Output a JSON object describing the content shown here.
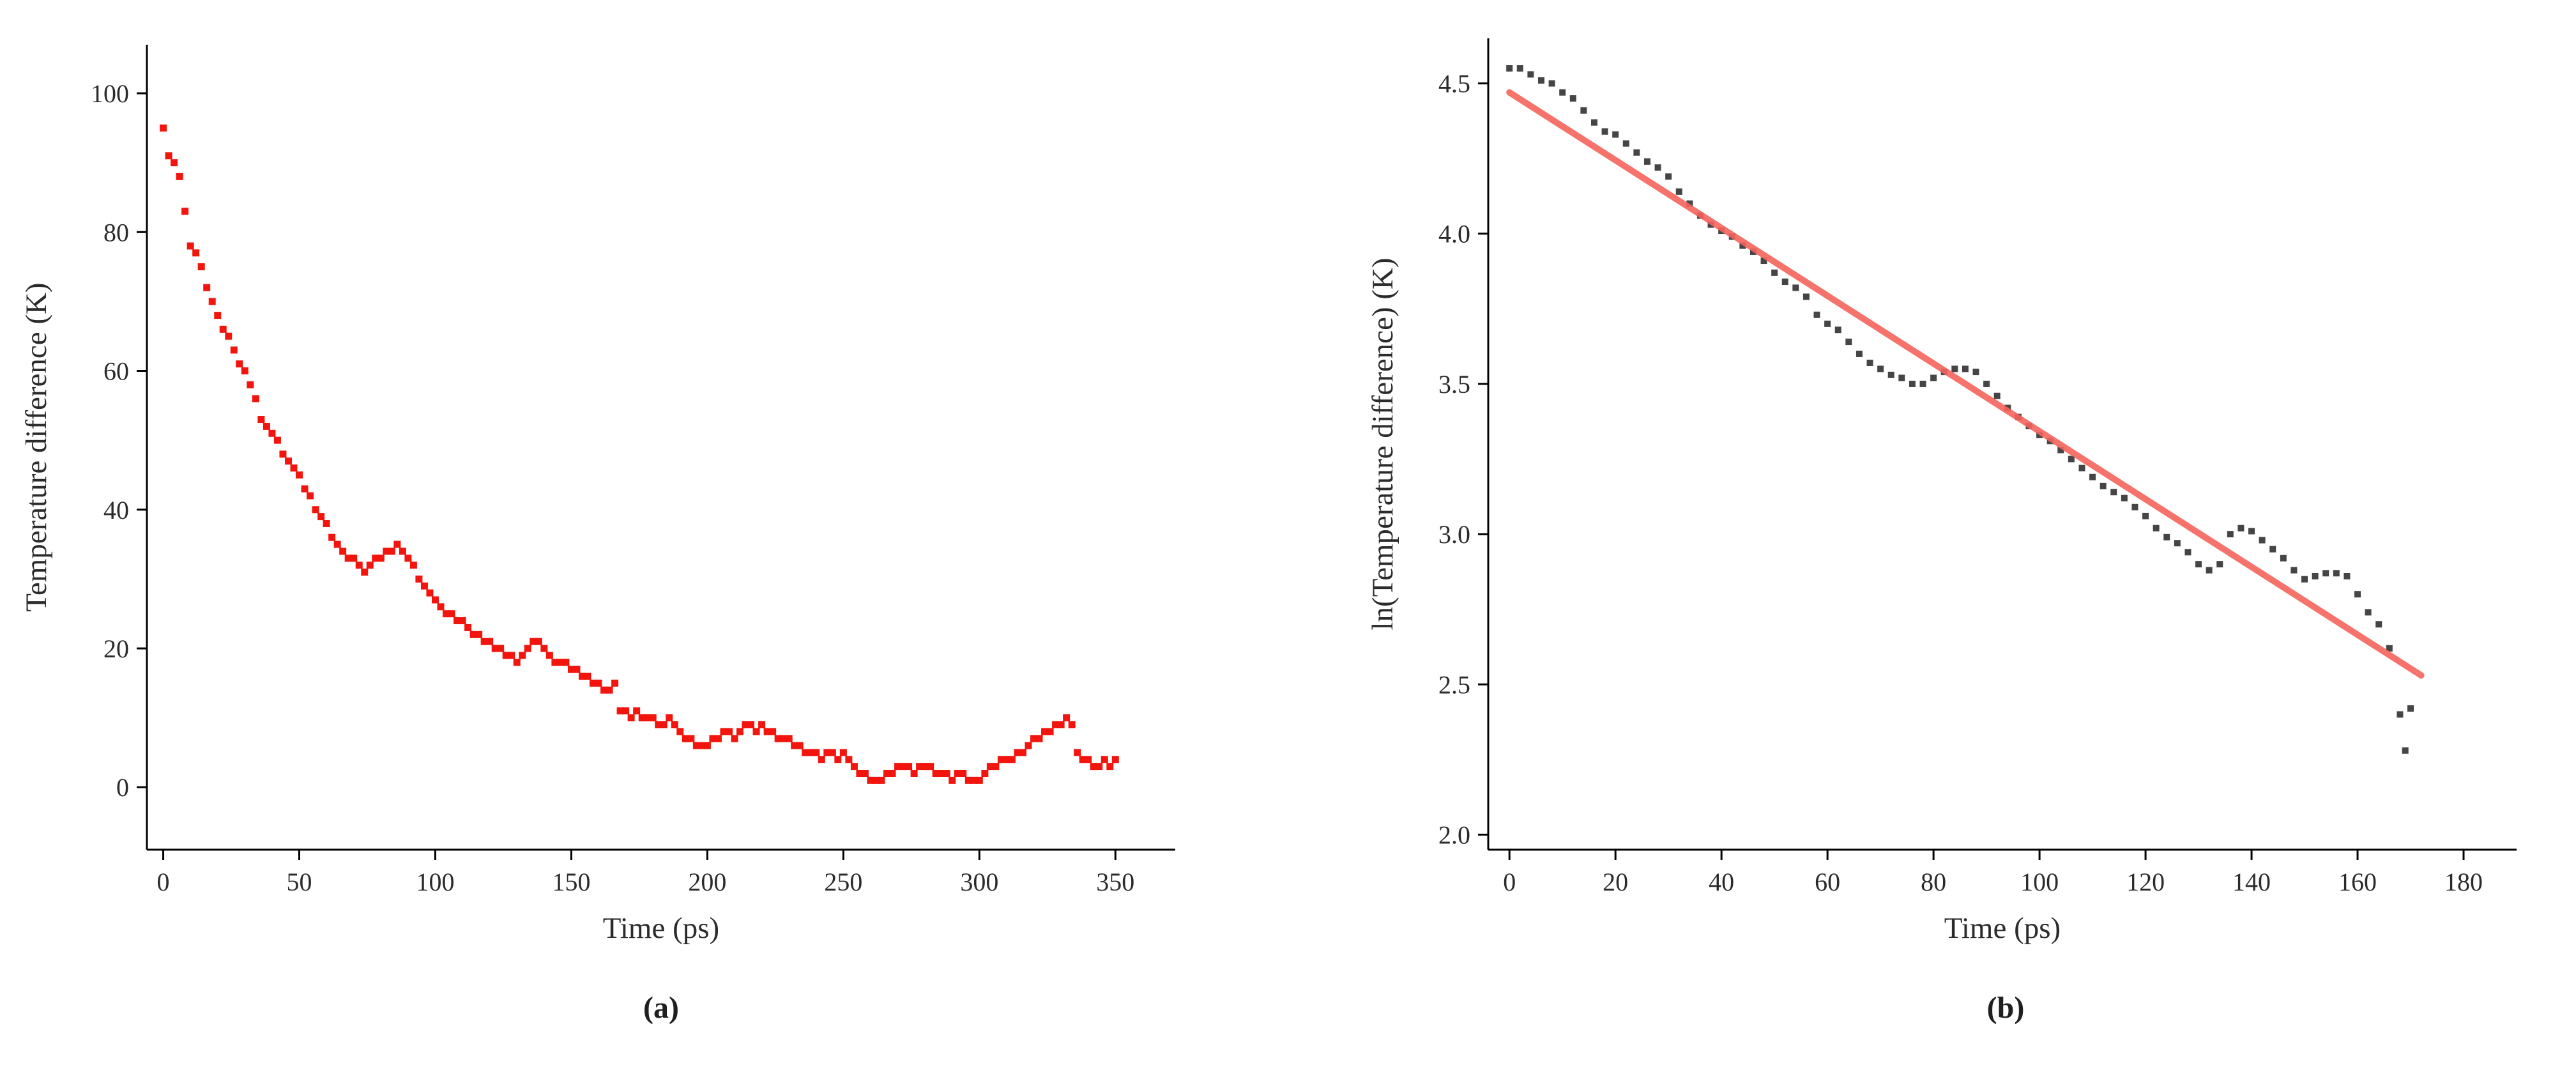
{
  "figure": {
    "caption_a": "(a)",
    "caption_b": "(b)"
  },
  "colors": {
    "panel_a_marker": "#f2150d",
    "panel_b_marker": "#454545",
    "fit_line": "#f4645c",
    "axis": "#000000",
    "text": "#2b2b2b"
  },
  "chart_data": [
    {
      "id": "panel-a",
      "type": "scatter",
      "title": "",
      "xlabel": "Time (ps)",
      "ylabel": "Temperature difference (K)",
      "xlim": [
        -6,
        372
      ],
      "ylim": [
        -9,
        107
      ],
      "xticks": [
        0,
        50,
        100,
        150,
        200,
        250,
        300,
        350
      ],
      "xtick_labels": [
        "0",
        "50",
        "100",
        "150",
        "200",
        "250",
        "300",
        "350"
      ],
      "yticks": [
        0,
        20,
        40,
        60,
        80,
        100
      ],
      "ytick_labels": [
        "0",
        "20",
        "40",
        "60",
        "80",
        "100"
      ],
      "grid": false,
      "legend": null,
      "marker": "square",
      "marker_size": 11,
      "marker_color": "#f2150d",
      "axis_color": "#000000",
      "text_color": "#2b2b2b",
      "ylabel_offset": 158,
      "series": [
        {
          "name": "Temperature difference",
          "x": [
            0,
            2,
            4,
            6,
            8,
            10,
            12,
            14,
            16,
            18,
            20,
            22,
            24,
            26,
            28,
            30,
            32,
            34,
            36,
            38,
            40,
            42,
            44,
            46,
            48,
            50,
            52,
            54,
            56,
            58,
            60,
            62,
            64,
            66,
            68,
            70,
            72,
            74,
            76,
            78,
            80,
            82,
            84,
            86,
            88,
            90,
            92,
            94,
            96,
            98,
            100,
            102,
            104,
            106,
            108,
            110,
            112,
            114,
            116,
            118,
            120,
            122,
            124,
            126,
            128,
            130,
            132,
            134,
            136,
            138,
            140,
            142,
            144,
            146,
            148,
            150,
            152,
            154,
            156,
            158,
            160,
            162,
            164,
            166,
            168,
            170,
            172,
            174,
            176,
            178,
            180,
            182,
            184,
            186,
            188,
            190,
            192,
            194,
            196,
            198,
            200,
            202,
            204,
            206,
            208,
            210,
            212,
            214,
            216,
            218,
            220,
            222,
            224,
            226,
            228,
            230,
            232,
            234,
            236,
            238,
            240,
            242,
            244,
            246,
            248,
            250,
            252,
            254,
            256,
            258,
            260,
            262,
            264,
            266,
            268,
            270,
            272,
            274,
            276,
            278,
            280,
            282,
            284,
            286,
            288,
            290,
            292,
            294,
            296,
            298,
            300,
            302,
            304,
            306,
            308,
            310,
            312,
            314,
            316,
            318,
            320,
            322,
            324,
            326,
            328,
            330,
            332,
            334,
            336,
            338,
            340,
            342,
            344,
            346,
            348,
            350
          ],
          "y": [
            95,
            91,
            90,
            88,
            83,
            78,
            77,
            75,
            72,
            70,
            68,
            66,
            65,
            63,
            61,
            60,
            58,
            56,
            53,
            52,
            51,
            50,
            48,
            47,
            46,
            45,
            43,
            42,
            40,
            39,
            38,
            36,
            35,
            34,
            33,
            33,
            32,
            31,
            32,
            33,
            33,
            34,
            34,
            35,
            34,
            33,
            32,
            30,
            29,
            28,
            27,
            26,
            25,
            25,
            24,
            24,
            23,
            22,
            22,
            21,
            21,
            20,
            20,
            19,
            19,
            18,
            19,
            20,
            21,
            21,
            20,
            19,
            18,
            18,
            18,
            17,
            17,
            16,
            16,
            15,
            15,
            14,
            14,
            15,
            11,
            11,
            10,
            11,
            10,
            10,
            10,
            9,
            9,
            10,
            9,
            8,
            7,
            7,
            6,
            6,
            6,
            7,
            7,
            8,
            8,
            7,
            8,
            9,
            9,
            8,
            9,
            8,
            8,
            7,
            7,
            7,
            6,
            6,
            5,
            5,
            5,
            4,
            5,
            5,
            4,
            5,
            4,
            3,
            2,
            2,
            1,
            1,
            1,
            2,
            2,
            3,
            3,
            3,
            2,
            3,
            3,
            3,
            2,
            2,
            2,
            1,
            2,
            2,
            1,
            1,
            1,
            2,
            3,
            3,
            4,
            4,
            4,
            5,
            5,
            6,
            7,
            7,
            8,
            8,
            9,
            9,
            10,
            9,
            5,
            4,
            4,
            3,
            3,
            4,
            3,
            4
          ]
        }
      ]
    },
    {
      "id": "panel-b",
      "type": "scatter",
      "title": "",
      "xlabel": "Time (ps)",
      "ylabel": "ln(Temperature difference) (K)",
      "xlim": [
        -4,
        190
      ],
      "ylim": [
        1.95,
        4.65
      ],
      "xticks": [
        0,
        20,
        40,
        60,
        80,
        100,
        120,
        140,
        160,
        180
      ],
      "xtick_labels": [
        "0",
        "20",
        "40",
        "60",
        "80",
        "100",
        "120",
        "140",
        "160",
        "180"
      ],
      "yticks": [
        2.0,
        2.5,
        3.0,
        3.5,
        4.0,
        4.5
      ],
      "ytick_labels": [
        "2.0",
        "2.5",
        "3.0",
        "3.5",
        "4.0",
        "4.5"
      ],
      "grid": false,
      "legend": null,
      "marker": "square",
      "marker_size": 10,
      "marker_color": "#454545",
      "axis_color": "#000000",
      "text_color": "#2b2b2b",
      "ylabel_offset": 150,
      "series": [
        {
          "name": "ln(Temperature difference)",
          "x": [
            0,
            2,
            4,
            6,
            8,
            10,
            12,
            14,
            16,
            18,
            20,
            22,
            24,
            26,
            28,
            30,
            32,
            34,
            36,
            38,
            40,
            42,
            44,
            46,
            48,
            50,
            52,
            54,
            56,
            58,
            60,
            62,
            64,
            66,
            68,
            70,
            72,
            74,
            76,
            78,
            80,
            82,
            84,
            86,
            88,
            90,
            92,
            94,
            96,
            98,
            100,
            102,
            104,
            106,
            108,
            110,
            112,
            114,
            116,
            118,
            120,
            122,
            124,
            126,
            128,
            130,
            132,
            134,
            136,
            138,
            140,
            142,
            144,
            146,
            148,
            150,
            152,
            154,
            156,
            158,
            160,
            162,
            164,
            166,
            168,
            169,
            170
          ],
          "y": [
            4.55,
            4.55,
            4.53,
            4.51,
            4.5,
            4.47,
            4.45,
            4.41,
            4.37,
            4.34,
            4.33,
            4.3,
            4.27,
            4.24,
            4.22,
            4.19,
            4.14,
            4.1,
            4.06,
            4.03,
            4.01,
            3.99,
            3.96,
            3.94,
            3.91,
            3.87,
            3.84,
            3.82,
            3.79,
            3.73,
            3.7,
            3.68,
            3.64,
            3.6,
            3.57,
            3.55,
            3.53,
            3.52,
            3.5,
            3.5,
            3.52,
            3.54,
            3.55,
            3.55,
            3.54,
            3.5,
            3.46,
            3.42,
            3.39,
            3.36,
            3.33,
            3.31,
            3.28,
            3.25,
            3.22,
            3.19,
            3.16,
            3.14,
            3.12,
            3.09,
            3.06,
            3.02,
            2.99,
            2.97,
            2.94,
            2.9,
            2.88,
            2.9,
            3.0,
            3.02,
            3.01,
            2.98,
            2.95,
            2.92,
            2.88,
            2.85,
            2.86,
            2.87,
            2.87,
            2.86,
            2.8,
            2.74,
            2.7,
            2.62,
            2.4,
            2.28,
            2.42
          ]
        }
      ],
      "fit_line": {
        "name": "linear fit",
        "x": [
          0,
          172
        ],
        "y": [
          4.47,
          2.53
        ],
        "color": "#f4645c"
      }
    }
  ]
}
